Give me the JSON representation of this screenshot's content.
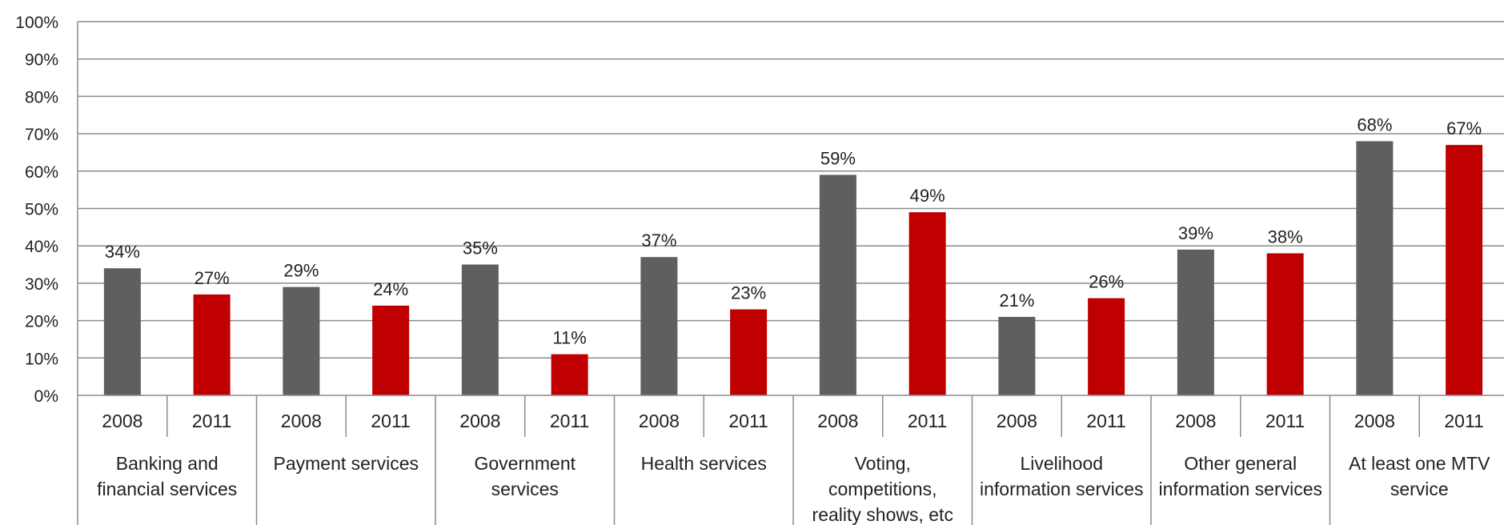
{
  "chart_data": {
    "type": "bar",
    "title": "",
    "xlabel": "",
    "ylabel": "",
    "ylim": [
      0,
      100
    ],
    "y_ticks": [
      "0%",
      "10%",
      "20%",
      "30%",
      "40%",
      "50%",
      "60%",
      "70%",
      "80%",
      "90%",
      "100%"
    ],
    "grid": true,
    "years": [
      "2008",
      "2011"
    ],
    "colors": {
      "2008": "#5f5f5f",
      "2011": "#c00000"
    },
    "categories": [
      {
        "label_lines": [
          "Banking and",
          "financial services"
        ],
        "values": [
          34,
          27
        ],
        "labels": [
          "34%",
          "27%"
        ]
      },
      {
        "label_lines": [
          "Payment services"
        ],
        "values": [
          29,
          24
        ],
        "labels": [
          "29%",
          "24%"
        ]
      },
      {
        "label_lines": [
          "Government",
          "services"
        ],
        "values": [
          35,
          11
        ],
        "labels": [
          "35%",
          "11%"
        ]
      },
      {
        "label_lines": [
          "Health services"
        ],
        "values": [
          37,
          23
        ],
        "labels": [
          "37%",
          "23%"
        ]
      },
      {
        "label_lines": [
          "Voting,",
          "competitions,",
          "reality shows, etc"
        ],
        "values": [
          59,
          49
        ],
        "labels": [
          "59%",
          "49%"
        ]
      },
      {
        "label_lines": [
          "Livelihood",
          "information services"
        ],
        "values": [
          21,
          26
        ],
        "labels": [
          "21%",
          "26%"
        ]
      },
      {
        "label_lines": [
          "Other general",
          "information services"
        ],
        "values": [
          39,
          38
        ],
        "labels": [
          "39%",
          "38%"
        ]
      },
      {
        "label_lines": [
          "At least one MTV",
          "service"
        ],
        "values": [
          68,
          67
        ],
        "labels": [
          "68%",
          "67%"
        ]
      }
    ]
  }
}
